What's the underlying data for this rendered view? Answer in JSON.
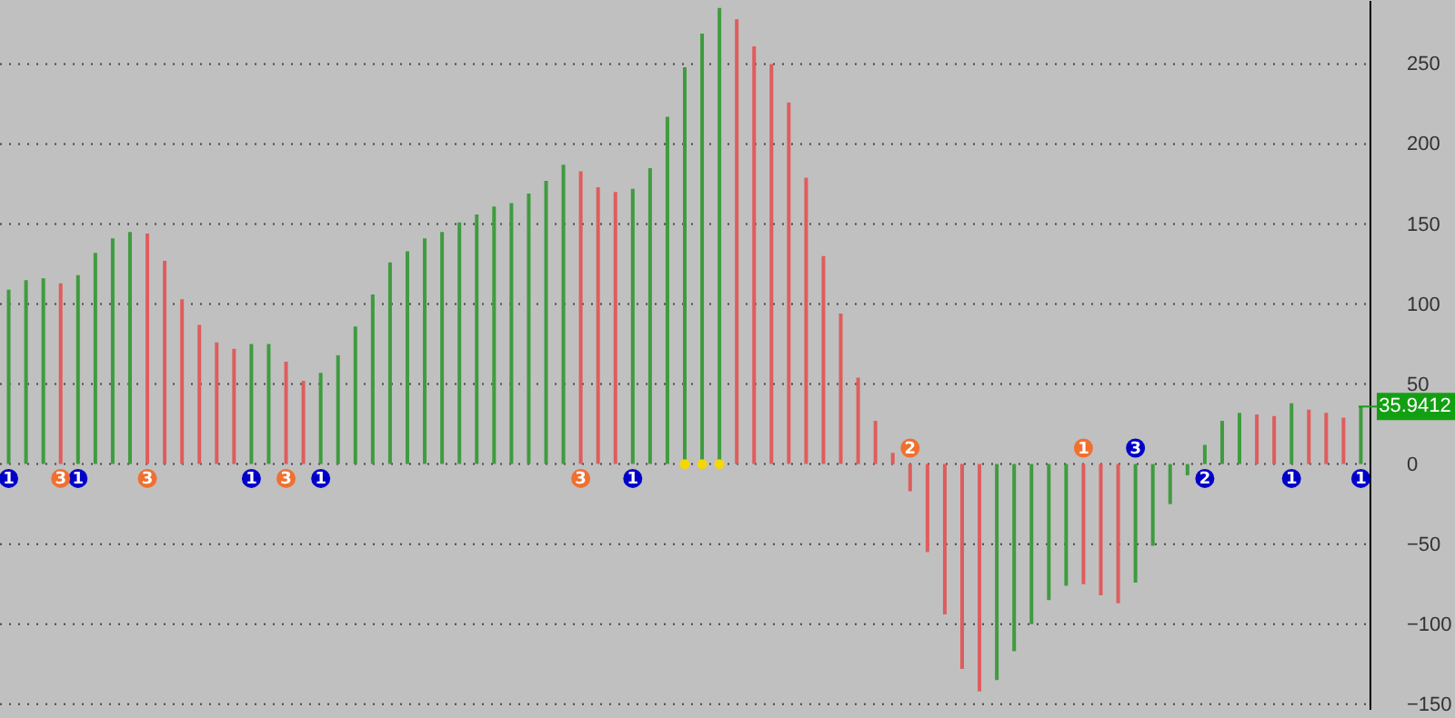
{
  "chart_data": {
    "type": "bar",
    "categories": [
      null,
      null,
      null,
      null,
      null,
      null,
      null,
      null,
      null,
      null,
      null,
      null,
      null,
      null,
      null,
      null,
      null,
      null,
      null,
      null,
      null,
      null,
      null,
      null,
      null,
      null,
      null,
      null,
      null,
      null,
      null,
      null,
      null,
      null,
      null,
      null,
      null,
      null,
      null,
      null,
      null,
      null,
      null,
      null,
      null,
      null,
      null,
      null,
      null,
      null,
      null,
      null,
      null,
      null,
      null,
      null,
      null,
      null,
      null,
      null,
      null,
      null,
      null,
      null,
      null,
      null,
      null,
      null,
      null,
      null,
      null,
      null,
      null,
      null,
      null,
      null,
      null,
      null,
      null
    ],
    "series": [
      {
        "type": "bar",
        "values": [
          109,
          115,
          116,
          113,
          118,
          132,
          141,
          145,
          144,
          127,
          103,
          87,
          76,
          72,
          75,
          75,
          64,
          52,
          57,
          68,
          86,
          106,
          126,
          133,
          141,
          145,
          151,
          156,
          161,
          163,
          169,
          177,
          187,
          183,
          173,
          170,
          172,
          185,
          217,
          248,
          269,
          285,
          278,
          261,
          250,
          226,
          179,
          130,
          94,
          54,
          27,
          7,
          -17,
          -55,
          -94,
          -128,
          -142,
          -135,
          -117,
          -100,
          -85,
          -76,
          -75,
          -82,
          -87,
          -74,
          -51,
          -25,
          -7,
          12,
          27,
          32,
          31,
          30,
          38,
          34,
          32,
          29,
          36
        ],
        "colors": [
          "#3f9b3f",
          "#3f9b3f",
          "#3f9b3f",
          "#e05c5c",
          "#3f9b3f",
          "#3f9b3f",
          "#3f9b3f",
          "#3f9b3f",
          "#e05c5c",
          "#e05c5c",
          "#e05c5c",
          "#e05c5c",
          "#e05c5c",
          "#e05c5c",
          "#3f9b3f",
          "#3f9b3f",
          "#e05c5c",
          "#e05c5c",
          "#3f9b3f",
          "#3f9b3f",
          "#3f9b3f",
          "#3f9b3f",
          "#3f9b3f",
          "#3f9b3f",
          "#3f9b3f",
          "#3f9b3f",
          "#3f9b3f",
          "#3f9b3f",
          "#3f9b3f",
          "#3f9b3f",
          "#3f9b3f",
          "#3f9b3f",
          "#3f9b3f",
          "#e05c5c",
          "#e05c5c",
          "#e05c5c",
          "#3f9b3f",
          "#3f9b3f",
          "#3f9b3f",
          "#3f9b3f",
          "#3f9b3f",
          "#3f9b3f",
          "#e05c5c",
          "#e05c5c",
          "#e05c5c",
          "#e05c5c",
          "#e05c5c",
          "#e05c5c",
          "#e05c5c",
          "#e05c5c",
          "#e05c5c",
          "#e05c5c",
          "#e05c5c",
          "#e05c5c",
          "#e05c5c",
          "#e05c5c",
          "#e05c5c",
          "#3f9b3f",
          "#3f9b3f",
          "#3f9b3f",
          "#3f9b3f",
          "#3f9b3f",
          "#e05c5c",
          "#e05c5c",
          "#e05c5c",
          "#3f9b3f",
          "#3f9b3f",
          "#3f9b3f",
          "#3f9b3f",
          "#3f9b3f",
          "#3f9b3f",
          "#3f9b3f",
          "#e05c5c",
          "#e05c5c",
          "#3f9b3f",
          "#e05c5c",
          "#e05c5c",
          "#e05c5c",
          "#3f9b3f"
        ]
      },
      {
        "type": "scatter",
        "color": "#0000c8",
        "values": [
          -9,
          null,
          null,
          null,
          -9,
          null,
          null,
          null,
          null,
          null,
          null,
          null,
          null,
          null,
          -9,
          null,
          null,
          null,
          -9,
          null,
          null,
          null,
          null,
          null,
          null,
          null,
          null,
          null,
          null,
          null,
          null,
          null,
          null,
          null,
          null,
          null,
          -9,
          null,
          null,
          null,
          null,
          null,
          null,
          null,
          null,
          null,
          null,
          null,
          null,
          null,
          null,
          null,
          null,
          null,
          null,
          null,
          null,
          null,
          null,
          null,
          null,
          null,
          null,
          null,
          null,
          10,
          null,
          null,
          null,
          -9,
          null,
          null,
          null,
          null,
          -9,
          null,
          null,
          null,
          -9
        ],
        "marker": "circle"
      },
      {
        "type": "scatter",
        "color": "#f07030",
        "values": [
          null,
          null,
          null,
          -9,
          null,
          null,
          null,
          null,
          -9,
          null,
          null,
          null,
          null,
          null,
          null,
          null,
          -9,
          null,
          null,
          null,
          null,
          null,
          null,
          null,
          null,
          null,
          null,
          null,
          null,
          null,
          null,
          null,
          null,
          -9,
          null,
          null,
          null,
          null,
          null,
          null,
          null,
          null,
          null,
          null,
          null,
          null,
          null,
          null,
          null,
          null,
          null,
          null,
          10,
          null,
          null,
          null,
          null,
          null,
          null,
          null,
          null,
          null,
          10,
          null,
          null,
          null,
          null,
          null,
          null,
          null,
          null,
          null,
          null,
          null,
          null,
          null,
          null,
          null,
          null
        ],
        "marker": "circle"
      },
      {
        "type": "scatter",
        "color": "#f5d800",
        "values": [
          null,
          null,
          null,
          null,
          null,
          null,
          null,
          null,
          null,
          null,
          null,
          null,
          null,
          null,
          null,
          null,
          null,
          null,
          null,
          null,
          null,
          null,
          null,
          null,
          null,
          null,
          null,
          null,
          null,
          null,
          null,
          null,
          null,
          null,
          null,
          null,
          null,
          null,
          null,
          0,
          0,
          0,
          null,
          null,
          null,
          null,
          null,
          null,
          null,
          null,
          null,
          null,
          null,
          null,
          null,
          null,
          null,
          null,
          null,
          null,
          null,
          null,
          null,
          null,
          null,
          null,
          null,
          null,
          null,
          null,
          null,
          null,
          null,
          null,
          null,
          null,
          null,
          null,
          null
        ]
      }
    ],
    "ylim": [
      -153,
      290
    ],
    "yticks": [
      -150,
      -100,
      -50,
      0,
      50,
      100,
      150,
      200,
      250
    ],
    "grid": "y",
    "marker": "circle",
    "annotations": [
      "1",
      "1",
      "1",
      "1",
      "1",
      "3",
      "2",
      "1",
      "1",
      "3",
      "3",
      "3",
      "3",
      "2",
      "1"
    ],
    "ref_lines": [
      {
        "axis": "y",
        "value": 35.9412,
        "label": "35.9412",
        "color": "#12a012"
      }
    ]
  }
}
